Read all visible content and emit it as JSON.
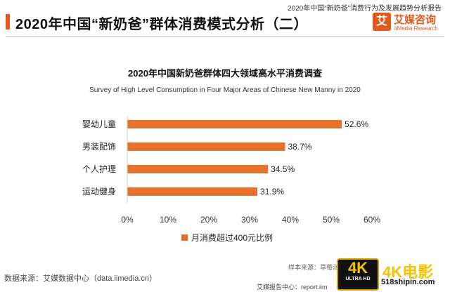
{
  "header": {
    "top_caption": "2020年中国“新奶爸”消费行为及发展趋势分析报告",
    "title": "2020年中国“新奶爸”群体消费模式分析（二）",
    "logo": {
      "mark": "艾",
      "name_cn": "艾媒咨询",
      "name_en": "iiMedia Research",
      "color": "#e05a1e"
    }
  },
  "chart_data": {
    "type": "bar",
    "orientation": "horizontal",
    "title": "2020年中国新奶爸群体四大领域高水平消费调查",
    "subtitle": "Survey of High Level Consumption in Four Major Areas of Chinese New Manny in 2020",
    "categories": [
      "婴幼儿童",
      "男装配饰",
      "个人护理",
      "运动健身"
    ],
    "series": [
      {
        "name": "月消费超过400元比例",
        "values": [
          52.6,
          38.7,
          34.5,
          31.9
        ],
        "color": "#e8702a"
      }
    ],
    "value_labels": [
      "52.6%",
      "38.7%",
      "34.5%",
      "31.9%"
    ],
    "xlim": [
      0,
      60
    ],
    "xticks": [
      "0%",
      "10%",
      "20%",
      "30%",
      "40%",
      "50%",
      "60%"
    ],
    "grid": false,
    "legend_position": "bottom"
  },
  "footer": {
    "source": "数据来源：艾媒数据中心（data.iimedia.cn）",
    "sample": "样本来源：草莓派",
    "report": "艾媒报告中心：report.iim"
  },
  "watermark": {
    "badge_big": "4K",
    "badge_small": "ULTRA HD",
    "text": "4K电影",
    "url": "518shipin.com"
  }
}
